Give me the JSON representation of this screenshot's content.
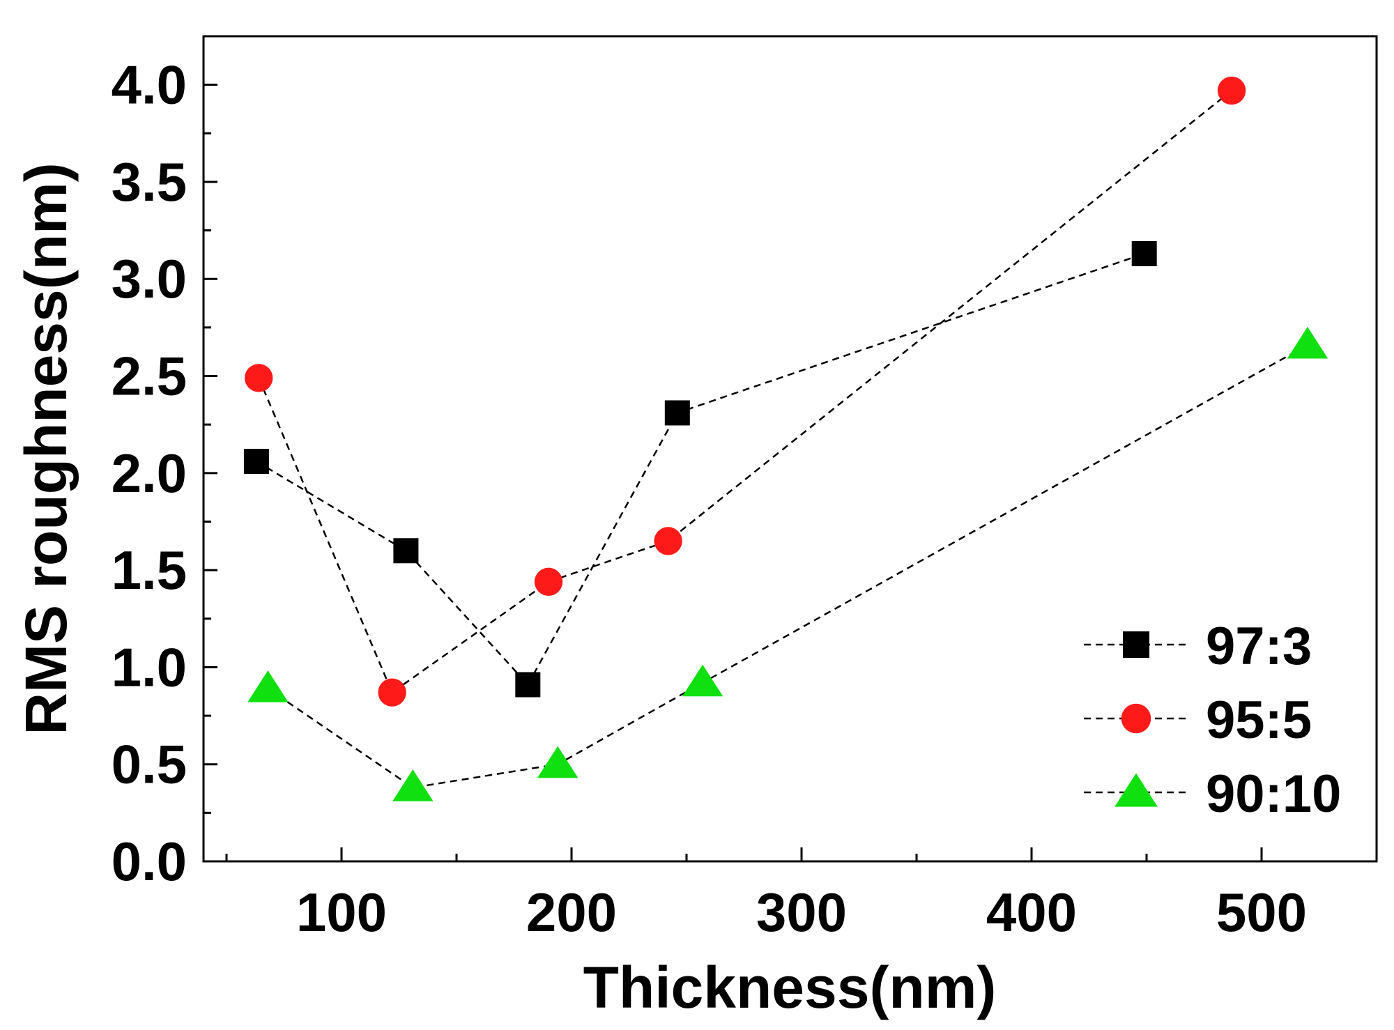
{
  "chart_data": {
    "type": "line",
    "title": "",
    "xlabel": "Thickness(nm)",
    "ylabel": "RMS roughness(nm)",
    "xlim": [
      40,
      550
    ],
    "ylim": [
      0,
      4.25
    ],
    "xticks": [
      100,
      200,
      300,
      400,
      500
    ],
    "xtick_labels": [
      "100",
      "200",
      "300",
      "400",
      "500"
    ],
    "yticks": [
      0,
      0.5,
      1.0,
      1.5,
      2.0,
      2.5,
      3.0,
      3.5,
      4.0
    ],
    "ytick_labels": [
      "0.0",
      "0.5",
      "1.0",
      "1.5",
      "2.0",
      "2.5",
      "3.0",
      "3.5",
      "4.0"
    ],
    "grid": false,
    "legend_position": "bottom-right",
    "line_style": "dashed",
    "series": [
      {
        "name": "97:3",
        "marker": "square",
        "color": "#000000",
        "x": [
          63,
          128,
          181,
          246,
          449
        ],
        "y": [
          2.06,
          1.6,
          0.91,
          2.31,
          3.13
        ]
      },
      {
        "name": "95:5",
        "marker": "circle",
        "color": "#ff1a1a",
        "x": [
          64,
          122,
          190,
          242,
          487
        ],
        "y": [
          2.49,
          0.87,
          1.44,
          1.65,
          3.97
        ]
      },
      {
        "name": "90:10",
        "marker": "triangle",
        "color": "#10e010",
        "x": [
          68,
          131,
          194,
          257,
          520
        ],
        "y": [
          0.89,
          0.38,
          0.5,
          0.92,
          2.66
        ]
      }
    ]
  }
}
